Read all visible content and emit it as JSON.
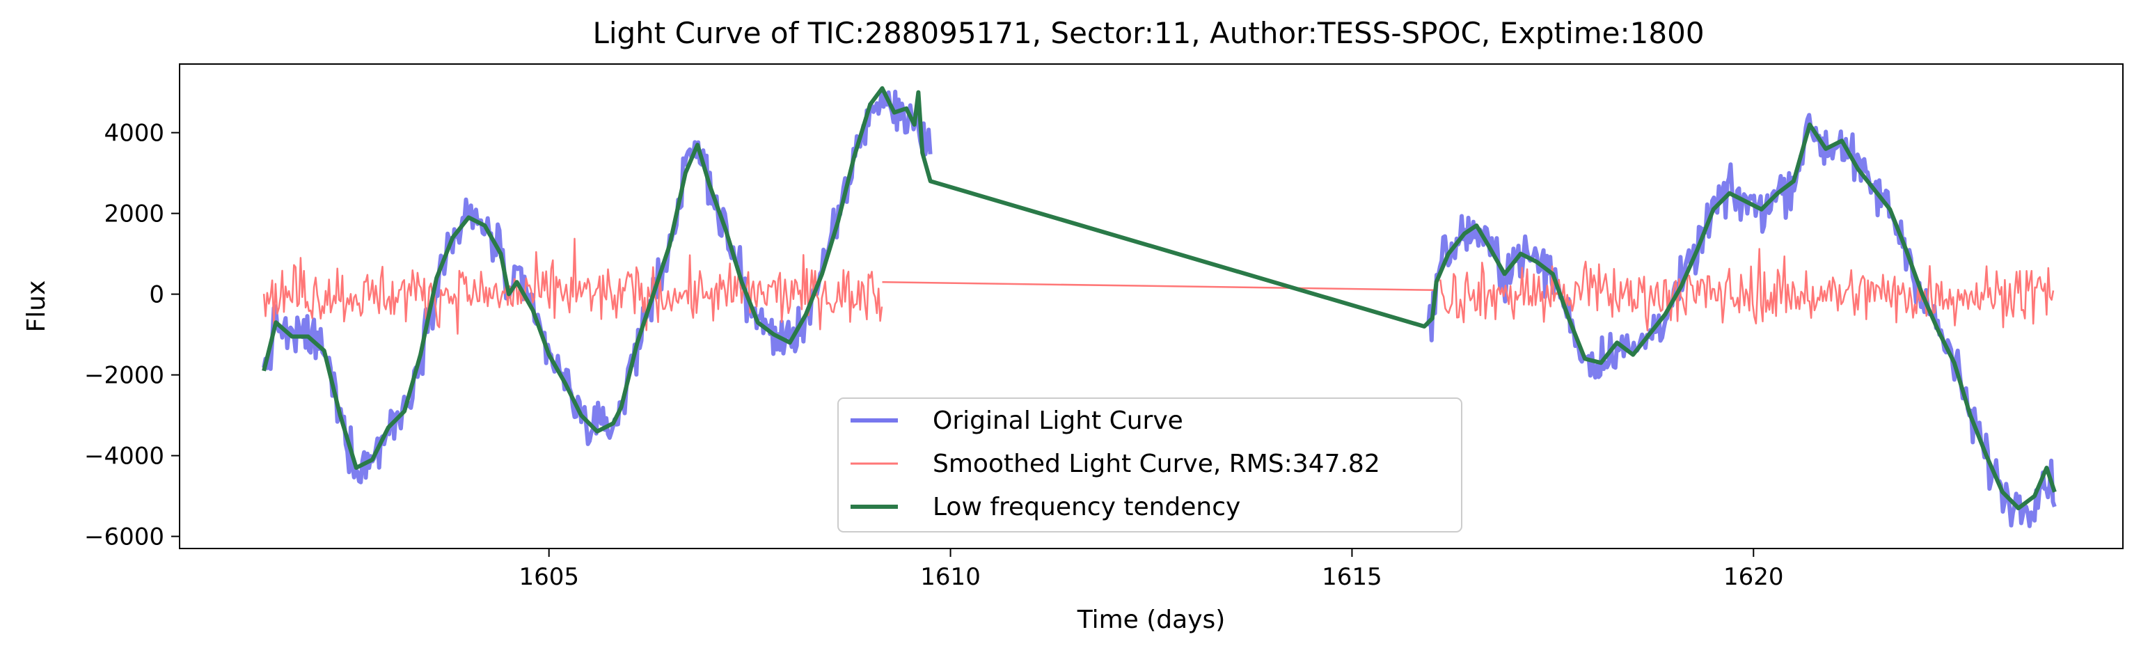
{
  "chart_data": {
    "type": "line",
    "title": "Light Curve of TIC:288095171, Sector:11, Author:TESS-SPOC, Exptime:1800",
    "xlabel": "Time (days)",
    "ylabel": "Flux",
    "xlim": [
      1600.4,
      1624.6
    ],
    "ylim": [
      -6300,
      5700
    ],
    "xticks": [
      1605,
      1610,
      1615,
      1620
    ],
    "yticks": [
      -6000,
      -4000,
      -2000,
      0,
      2000,
      4000
    ],
    "xtick_labels": [
      "1605",
      "1610",
      "1615",
      "1620"
    ],
    "ytick_labels": [
      "−6000",
      "−4000",
      "−2000",
      "0",
      "2000",
      "4000"
    ],
    "grid": false,
    "legend_position": "bottom-center",
    "series": [
      {
        "name": "Original Light Curve",
        "color": "#7777ee",
        "anchors": [
          [
            1601.45,
            -2000
          ],
          [
            1601.6,
            -700
          ],
          [
            1601.8,
            -1100
          ],
          [
            1602.0,
            -1000
          ],
          [
            1602.2,
            -1400
          ],
          [
            1602.4,
            -3000
          ],
          [
            1602.6,
            -4300
          ],
          [
            1602.8,
            -4100
          ],
          [
            1603.0,
            -3300
          ],
          [
            1603.2,
            -2900
          ],
          [
            1603.4,
            -1500
          ],
          [
            1603.6,
            400
          ],
          [
            1603.8,
            1400
          ],
          [
            1604.0,
            1900
          ],
          [
            1604.2,
            1700
          ],
          [
            1604.4,
            1000
          ],
          [
            1604.5,
            0
          ],
          [
            1604.6,
            300
          ],
          [
            1604.8,
            -400
          ],
          [
            1605.0,
            -1500
          ],
          [
            1605.2,
            -2200
          ],
          [
            1605.4,
            -3000
          ],
          [
            1605.6,
            -3400
          ],
          [
            1605.8,
            -3200
          ],
          [
            1605.9,
            -2800
          ],
          [
            1606.1,
            -1200
          ],
          [
            1606.3,
            0
          ],
          [
            1606.5,
            1200
          ],
          [
            1606.7,
            3000
          ],
          [
            1606.85,
            3700
          ],
          [
            1607.0,
            2700
          ],
          [
            1607.2,
            1600
          ],
          [
            1607.4,
            300
          ],
          [
            1607.6,
            -700
          ],
          [
            1607.8,
            -1000
          ],
          [
            1608.0,
            -1200
          ],
          [
            1608.2,
            -500
          ],
          [
            1608.4,
            500
          ],
          [
            1608.6,
            1800
          ],
          [
            1608.8,
            3400
          ],
          [
            1609.0,
            4600
          ],
          [
            1609.2,
            4800
          ],
          [
            1609.4,
            4400
          ],
          [
            1609.6,
            4300
          ],
          [
            1609.75,
            3500
          ],
          [
            1615.95,
            -900
          ],
          [
            1616.1,
            800
          ],
          [
            1616.3,
            1300
          ],
          [
            1616.5,
            1600
          ],
          [
            1616.7,
            1200
          ],
          [
            1616.9,
            500
          ],
          [
            1617.1,
            1000
          ],
          [
            1617.3,
            800
          ],
          [
            1617.5,
            500
          ],
          [
            1617.7,
            -600
          ],
          [
            1617.9,
            -1600
          ],
          [
            1618.1,
            -1700
          ],
          [
            1618.3,
            -1200
          ],
          [
            1618.5,
            -1500
          ],
          [
            1618.7,
            -1000
          ],
          [
            1618.9,
            -500
          ],
          [
            1619.1,
            200
          ],
          [
            1619.3,
            1100
          ],
          [
            1619.5,
            2100
          ],
          [
            1619.7,
            2500
          ],
          [
            1619.9,
            2300
          ],
          [
            1620.1,
            2100
          ],
          [
            1620.3,
            2500
          ],
          [
            1620.5,
            2800
          ],
          [
            1620.7,
            4200
          ],
          [
            1620.9,
            3600
          ],
          [
            1621.1,
            3800
          ],
          [
            1621.3,
            3100
          ],
          [
            1621.5,
            2600
          ],
          [
            1621.7,
            2100
          ],
          [
            1621.9,
            1100
          ],
          [
            1622.1,
            0
          ],
          [
            1622.3,
            -900
          ],
          [
            1622.5,
            -1700
          ],
          [
            1622.7,
            -3000
          ],
          [
            1622.9,
            -4000
          ],
          [
            1623.1,
            -4900
          ],
          [
            1623.3,
            -5300
          ],
          [
            1623.5,
            -5000
          ],
          [
            1623.65,
            -4500
          ],
          [
            1623.75,
            -5000
          ]
        ]
      },
      {
        "name": "Smoothed Light Curve, RMS:347.82",
        "color": "#ff7777",
        "rms": 347.82,
        "segments": [
          [
            1601.45,
            1609.15
          ],
          [
            1616.1,
            1623.75
          ]
        ],
        "bridge": [
          [
            1609.15,
            300
          ],
          [
            1616.05,
            100
          ]
        ]
      },
      {
        "name": "Low frequency tendency",
        "color": "#2a7a48",
        "anchors": [
          [
            1601.45,
            -1900
          ],
          [
            1601.6,
            -700
          ],
          [
            1601.8,
            -1050
          ],
          [
            1602.0,
            -1050
          ],
          [
            1602.2,
            -1400
          ],
          [
            1602.4,
            -3000
          ],
          [
            1602.6,
            -4300
          ],
          [
            1602.8,
            -4100
          ],
          [
            1603.0,
            -3300
          ],
          [
            1603.2,
            -2900
          ],
          [
            1603.4,
            -1500
          ],
          [
            1603.6,
            400
          ],
          [
            1603.8,
            1400
          ],
          [
            1604.0,
            1900
          ],
          [
            1604.2,
            1700
          ],
          [
            1604.4,
            1000
          ],
          [
            1604.5,
            0
          ],
          [
            1604.6,
            300
          ],
          [
            1604.8,
            -400
          ],
          [
            1605.0,
            -1500
          ],
          [
            1605.2,
            -2200
          ],
          [
            1605.4,
            -3000
          ],
          [
            1605.6,
            -3400
          ],
          [
            1605.8,
            -3200
          ],
          [
            1605.9,
            -2800
          ],
          [
            1606.1,
            -1200
          ],
          [
            1606.3,
            0
          ],
          [
            1606.5,
            1200
          ],
          [
            1606.7,
            3000
          ],
          [
            1606.85,
            3700
          ],
          [
            1607.0,
            2700
          ],
          [
            1607.2,
            1600
          ],
          [
            1607.4,
            300
          ],
          [
            1607.6,
            -700
          ],
          [
            1607.8,
            -1000
          ],
          [
            1608.0,
            -1200
          ],
          [
            1608.2,
            -500
          ],
          [
            1608.4,
            500
          ],
          [
            1608.6,
            1800
          ],
          [
            1608.8,
            3400
          ],
          [
            1609.0,
            4700
          ],
          [
            1609.15,
            5100
          ],
          [
            1609.3,
            4500
          ],
          [
            1609.45,
            4600
          ],
          [
            1609.55,
            4200
          ],
          [
            1609.6,
            5000
          ],
          [
            1609.65,
            3500
          ],
          [
            1609.75,
            2800
          ],
          [
            1615.9,
            -800
          ],
          [
            1616.0,
            -600
          ],
          [
            1616.05,
            300
          ],
          [
            1616.2,
            1000
          ],
          [
            1616.4,
            1500
          ],
          [
            1616.55,
            1700
          ],
          [
            1616.7,
            1200
          ],
          [
            1616.9,
            500
          ],
          [
            1617.1,
            1000
          ],
          [
            1617.3,
            800
          ],
          [
            1617.5,
            500
          ],
          [
            1617.7,
            -600
          ],
          [
            1617.9,
            -1600
          ],
          [
            1618.1,
            -1700
          ],
          [
            1618.3,
            -1200
          ],
          [
            1618.5,
            -1500
          ],
          [
            1618.7,
            -1000
          ],
          [
            1618.9,
            -500
          ],
          [
            1619.1,
            200
          ],
          [
            1619.3,
            1100
          ],
          [
            1619.5,
            2100
          ],
          [
            1619.7,
            2500
          ],
          [
            1619.9,
            2300
          ],
          [
            1620.1,
            2100
          ],
          [
            1620.3,
            2500
          ],
          [
            1620.5,
            2800
          ],
          [
            1620.7,
            4200
          ],
          [
            1620.9,
            3600
          ],
          [
            1621.1,
            3800
          ],
          [
            1621.3,
            3100
          ],
          [
            1621.5,
            2600
          ],
          [
            1621.7,
            2100
          ],
          [
            1621.9,
            1100
          ],
          [
            1622.1,
            0
          ],
          [
            1622.3,
            -900
          ],
          [
            1622.5,
            -1700
          ],
          [
            1622.7,
            -3000
          ],
          [
            1622.9,
            -4000
          ],
          [
            1623.1,
            -4900
          ],
          [
            1623.3,
            -5300
          ],
          [
            1623.5,
            -5000
          ],
          [
            1623.65,
            -4300
          ],
          [
            1623.75,
            -4900
          ]
        ]
      }
    ]
  }
}
